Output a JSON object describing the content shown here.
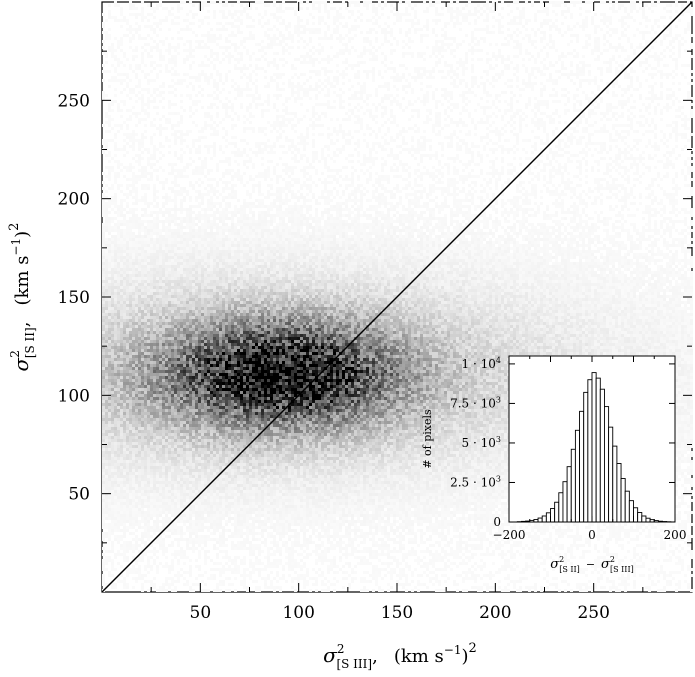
{
  "chart_data": [
    {
      "type": "heatmap",
      "xlabel": {
        "symbol": "σ",
        "sup": "2",
        "sub": "[S III]",
        "units": "(km s",
        "units_exp": "−1",
        "close": ")",
        "power": "2"
      },
      "ylabel": {
        "symbol": "σ",
        "sup": "2",
        "sub": "[S II]",
        "units": "(km s",
        "units_exp": "−1",
        "close": ")",
        "power": "2"
      },
      "xlim": [
        0,
        300
      ],
      "ylim": [
        0,
        300
      ],
      "xticks": [
        50,
        100,
        150,
        200,
        250
      ],
      "yticks": [
        50,
        100,
        150,
        200,
        250
      ],
      "xtick_labels": [
        "50",
        "100",
        "150",
        "200",
        "250"
      ],
      "ytick_labels": [
        "50",
        "100",
        "150",
        "200",
        "250"
      ],
      "density_peak": {
        "x": 90,
        "y": 110
      },
      "density_spread": {
        "x": 40,
        "y": 18
      },
      "density_extent": {
        "x": [
          0,
          300
        ],
        "y": [
          0,
          300
        ]
      },
      "reference_line": {
        "label": "y = x",
        "from": [
          0,
          0
        ],
        "to": [
          300,
          300
        ]
      },
      "grid": false
    },
    {
      "type": "bar",
      "subtype": "histogram",
      "xlabel": {
        "a_symbol": "σ",
        "a_sup": "2",
        "a_sub": "[S II]",
        "minus": "−",
        "b_symbol": "σ",
        "b_sup": "2",
        "b_sub": "[S III]"
      },
      "ylabel": "# of pixels",
      "xlim": [
        -200,
        200
      ],
      "ylim": [
        0,
        10500
      ],
      "xtick_labels": [
        "−200",
        "0",
        "200"
      ],
      "yticks": [
        0,
        2500,
        5000,
        7500,
        10000
      ],
      "ytick_labels": [
        {
          "mant": "0",
          "exp": ""
        },
        {
          "mant": "2.5 · 10",
          "exp": "3"
        },
        {
          "mant": "5 · 10",
          "exp": "3"
        },
        {
          "mant": "7.5 · 10",
          "exp": "3"
        },
        {
          "mant": "1 · 10",
          "exp": "4"
        }
      ],
      "bin_width": 10,
      "bin_start": -200,
      "values": [
        0,
        0,
        20,
        40,
        60,
        100,
        160,
        250,
        380,
        580,
        850,
        1250,
        1850,
        2550,
        3500,
        4600,
        5800,
        7000,
        8200,
        9000,
        9450,
        9100,
        8400,
        7300,
        6000,
        4800,
        3700,
        2750,
        1950,
        1350,
        900,
        600,
        380,
        240,
        150,
        90,
        50,
        30,
        15,
        5
      ]
    }
  ]
}
